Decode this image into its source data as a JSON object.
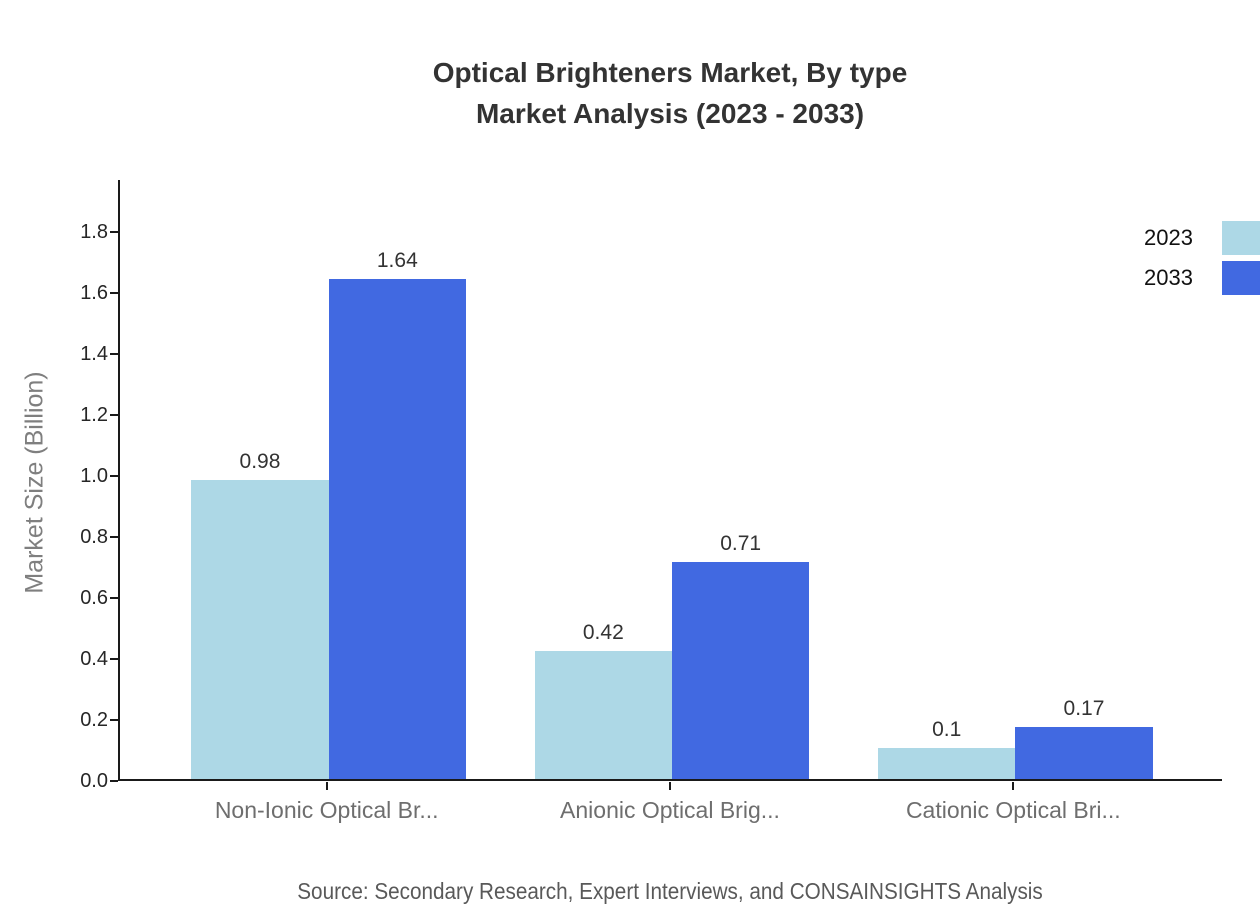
{
  "title": {
    "line1": "Optical Brighteners Market, By type",
    "line2": "Market Analysis (2023 - 2033)"
  },
  "chart_data": {
    "type": "bar",
    "categories": [
      "Non-Ionic Optical Br...",
      "Anionic Optical Brig...",
      "Cationic Optical Bri..."
    ],
    "series": [
      {
        "name": "2023",
        "color": "#ADD8E6",
        "values": [
          0.98,
          0.42,
          0.1
        ]
      },
      {
        "name": "2033",
        "color": "#4169E1",
        "values": [
          1.64,
          0.71,
          0.17
        ]
      }
    ],
    "title": "Optical Brighteners Market, By type Market Analysis (2023 - 2033)",
    "xlabel": "",
    "ylabel": "Market Size (Billion)",
    "yticks": [
      "0.0",
      "0.2",
      "0.4",
      "0.6",
      "0.8",
      "1.0",
      "1.2",
      "1.4",
      "1.6",
      "1.8"
    ],
    "ylim": [
      0,
      1.97
    ],
    "grid": false,
    "legend_position": "top-right",
    "bar_value_labels": [
      "0.98",
      "1.64",
      "0.42",
      "0.71",
      "0.1",
      "0.17"
    ]
  },
  "legend": {
    "items": [
      {
        "label": "2023",
        "color": "#ADD8E6"
      },
      {
        "label": "2033",
        "color": "#4169E1"
      }
    ]
  },
  "source": "Source: Secondary Research, Expert Interviews, and CONSAINSIGHTS Analysis"
}
